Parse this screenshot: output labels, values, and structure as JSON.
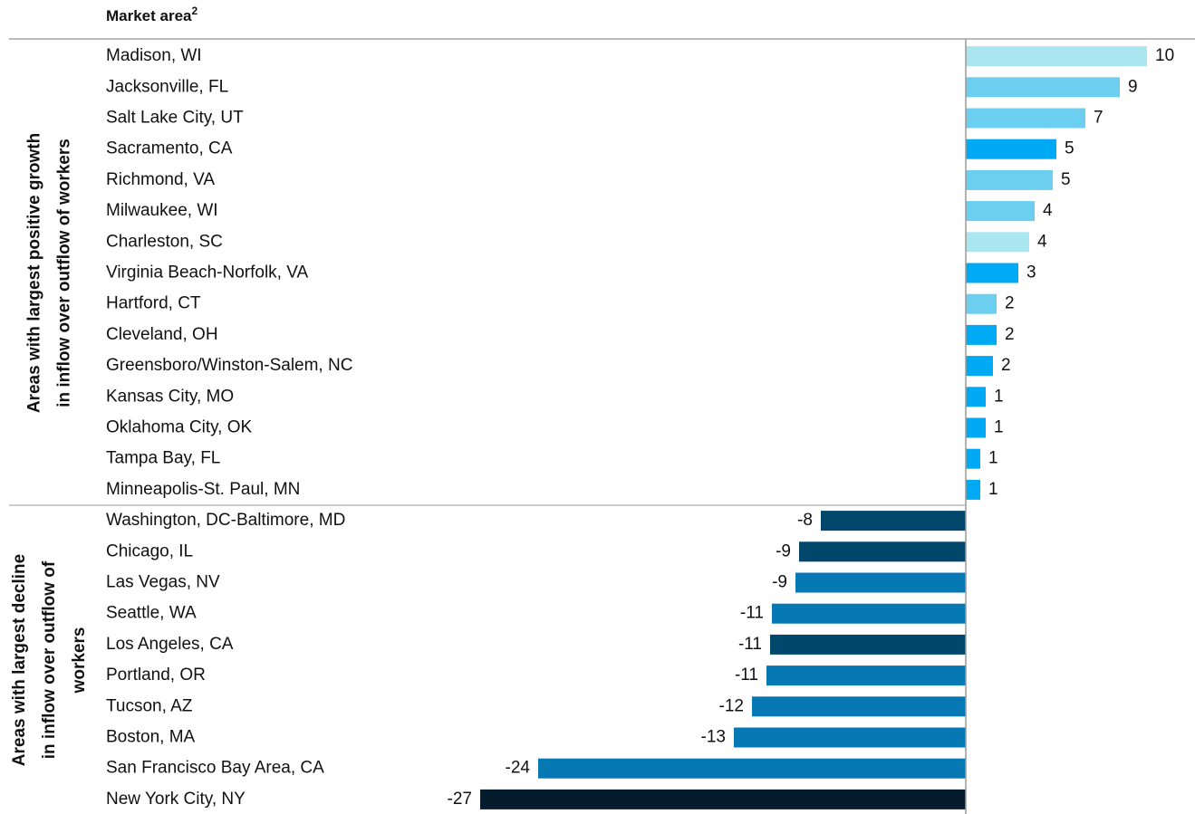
{
  "chart_data": {
    "type": "bar",
    "orientation": "horizontal",
    "header": "Market area",
    "header_sup": "2",
    "xlim": [
      -27.5,
      10.5
    ],
    "groups": [
      {
        "label": [
          "Areas with largest positive growth",
          "in inflow over outflow of workers"
        ],
        "categories": [
          "Madison, WI",
          "Jacksonville, FL",
          "Salt Lake City, UT",
          "Sacramento, CA",
          "Richmond, VA",
          "Milwaukee, WI",
          "Charleston, SC",
          "Virginia Beach-Norfolk, VA",
          "Hartford, CT",
          "Cleveland, OH",
          "Greensboro/Winston-Salem, NC",
          "Kansas City, MO",
          "Oklahoma City, OK",
          "Tampa Bay, FL",
          "Minneapolis-St. Paul, MN"
        ],
        "values": [
          10.0,
          8.5,
          6.6,
          5.0,
          4.8,
          3.8,
          3.5,
          2.9,
          1.7,
          1.7,
          1.5,
          1.1,
          1.1,
          0.8,
          0.8
        ],
        "value_labels": [
          "10",
          "9",
          "7",
          "5",
          "5",
          "4",
          "4",
          "3",
          "2",
          "2",
          "2",
          "1",
          "1",
          "1",
          "1"
        ],
        "colors": [
          "#aae6ef",
          "#6ccff0",
          "#6ccff0",
          "#00a9f4",
          "#6ccff0",
          "#6ccff0",
          "#aae6ef",
          "#00a9f4",
          "#6ccff0",
          "#00a9f4",
          "#00a9f4",
          "#00a9f4",
          "#00a9f4",
          "#00a9f4",
          "#00a9f4"
        ]
      },
      {
        "label": [
          "Areas with largest decline",
          "in inflow over outflow of",
          "workers"
        ],
        "categories": [
          "Washington, DC-Baltimore, MD",
          "Chicago, IL",
          "Las Vegas, NV",
          "Seattle, WA",
          "Los Angeles, CA",
          "Portland, OR",
          "Tucson, AZ",
          "Boston, MA",
          "San Francisco Bay Area, CA",
          "New York City, NY"
        ],
        "values": [
          -8.0,
          -9.2,
          -9.4,
          -10.7,
          -10.8,
          -11.0,
          -11.8,
          -12.8,
          -23.6,
          -26.8
        ],
        "value_labels": [
          "-8",
          "-9",
          "-9",
          "-11",
          "-11",
          "-11",
          "-12",
          "-13",
          "-24",
          "-27"
        ],
        "colors": [
          "#00476b",
          "#00476b",
          "#0678b4",
          "#0678b4",
          "#00476b",
          "#0678b4",
          "#0678b4",
          "#0678b4",
          "#0678b4",
          "#051c2c"
        ]
      }
    ]
  }
}
